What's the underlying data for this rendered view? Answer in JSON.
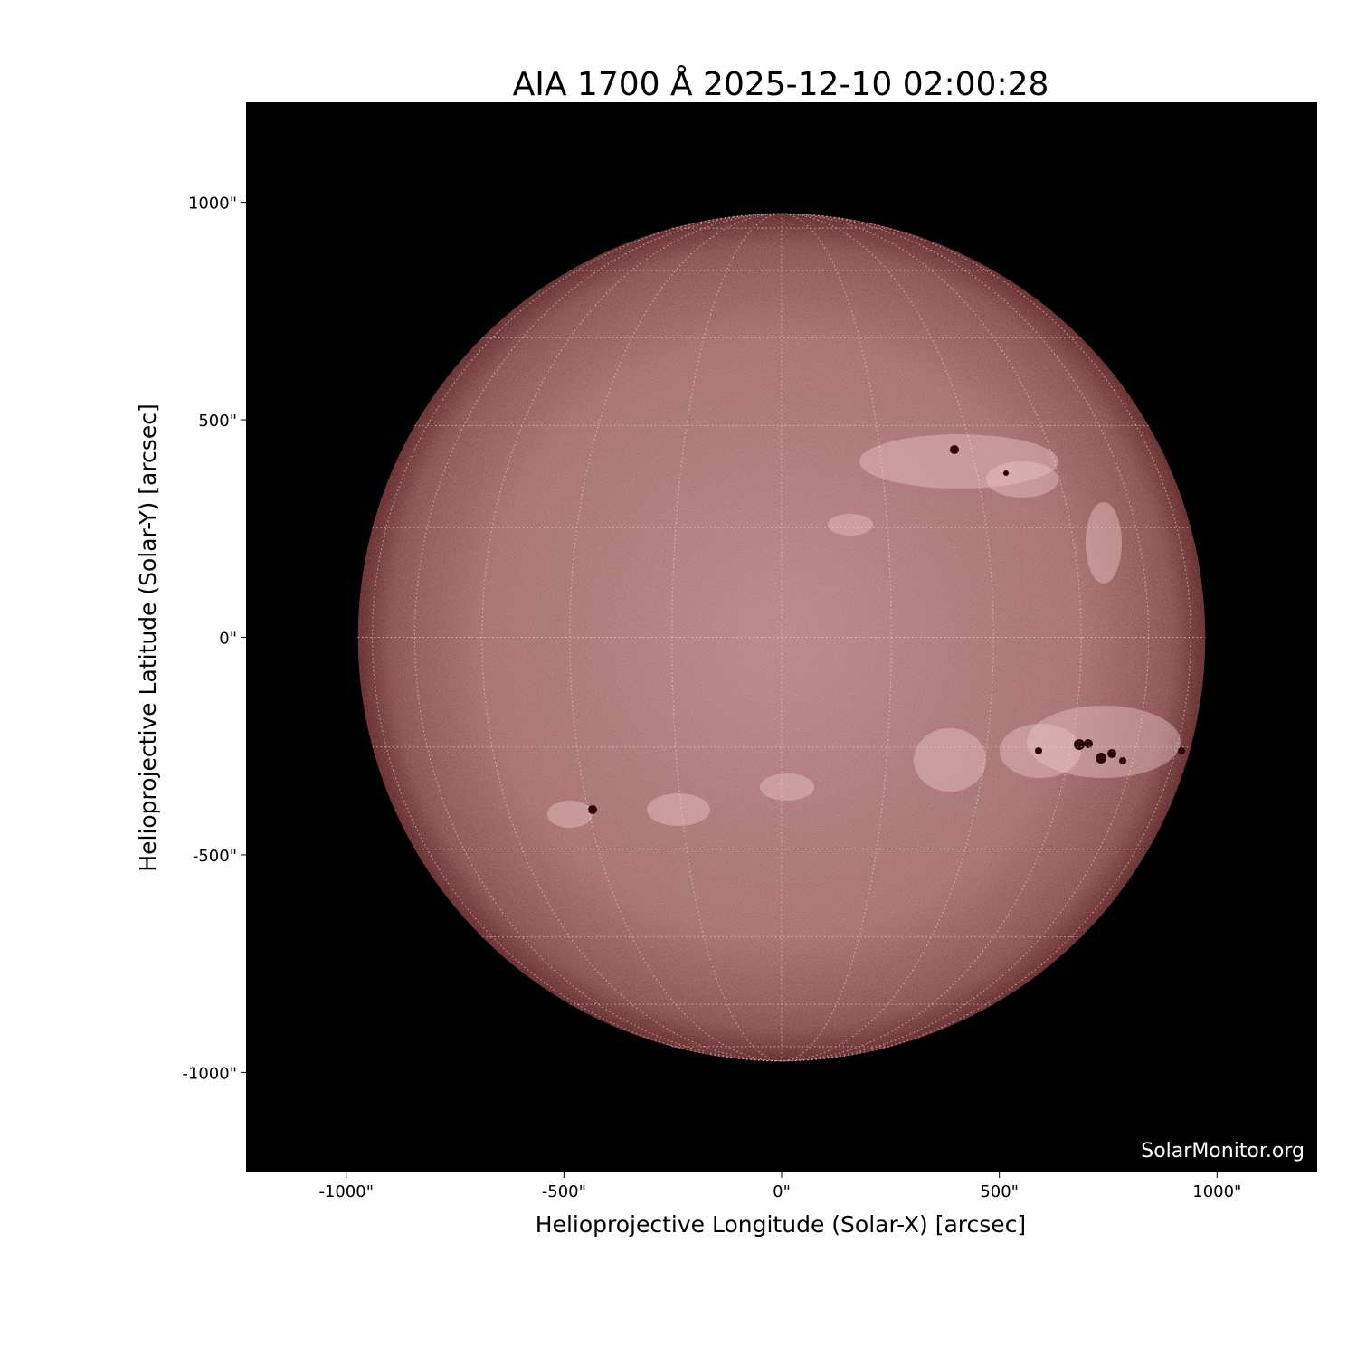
{
  "chart_data": {
    "type": "image",
    "title": "AIA 1700 Å 2025-12-10 02:00:28",
    "xlabel": "Helioprojective Longitude (Solar-X) [arcsec]",
    "ylabel": "Helioprojective Latitude (Solar-Y) [arcsec]",
    "xlim": [
      -1230,
      1230
    ],
    "ylim": [
      -1230,
      1230
    ],
    "xticks": [
      {
        "value": -1000,
        "label": "-1000\""
      },
      {
        "value": -500,
        "label": "-500\""
      },
      {
        "value": 0,
        "label": "0\""
      },
      {
        "value": 500,
        "label": "500\""
      },
      {
        "value": 1000,
        "label": "1000\""
      }
    ],
    "yticks": [
      {
        "value": 1000,
        "label": "1000\""
      },
      {
        "value": 500,
        "label": "500\""
      },
      {
        "value": 0,
        "label": "0\""
      },
      {
        "value": -500,
        "label": "-500\""
      },
      {
        "value": -1000,
        "label": "-1000\""
      }
    ],
    "solar_radius_arcsec": 973,
    "grid": "heliographic, 15° spacing, dotted",
    "colormap": "sdoaia1700",
    "colors": {
      "background": "#000000",
      "disk_center": "#b27a7a",
      "disk_limb": "#5a1e1e",
      "grid": "#f0d8d8"
    },
    "watermark": "SolarMonitor.org"
  }
}
